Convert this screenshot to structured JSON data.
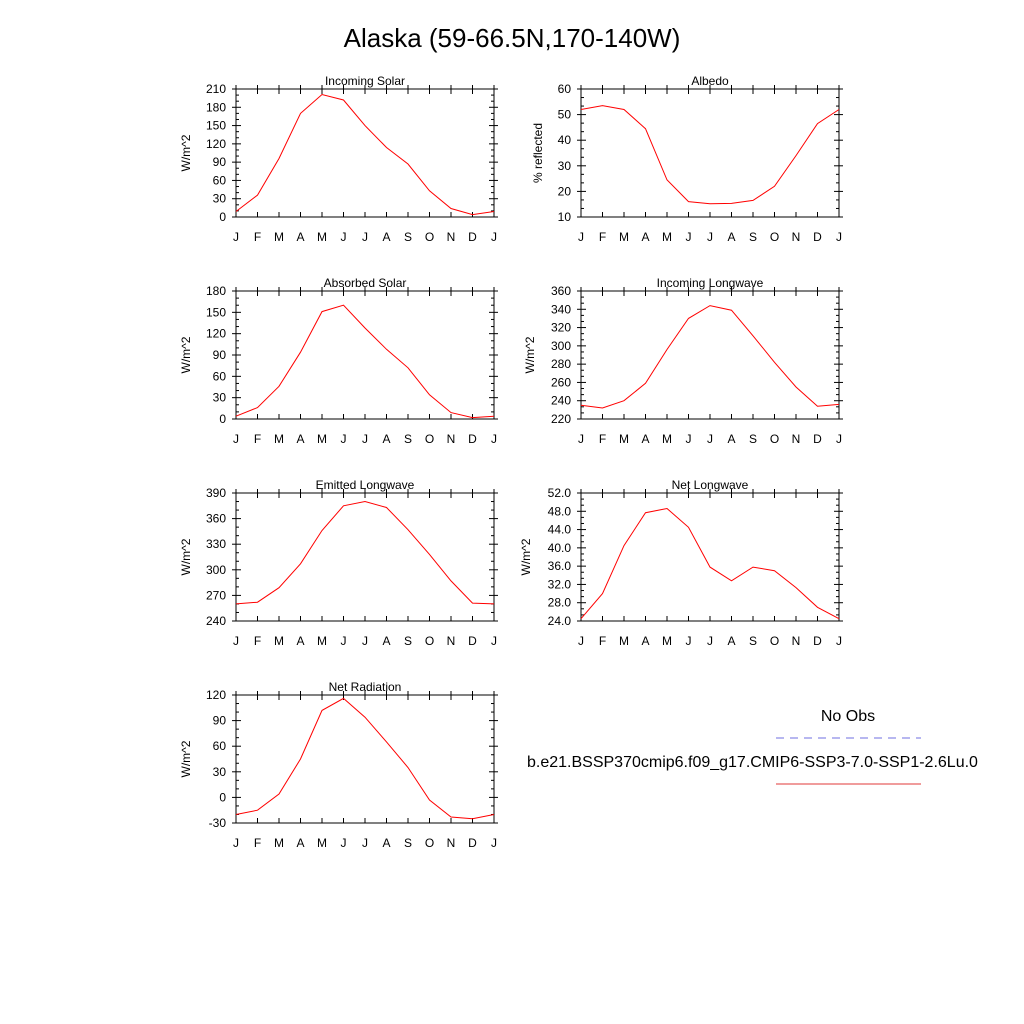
{
  "page_title": "Alaska (59-66.5N,170-140W)",
  "legend": {
    "obs_label": "No Obs",
    "obs_color": "#6f6fe0",
    "model_label": "b.e21.BSSP370cmip6.f09_g17.CMIP6-SSP3-7.0-SSP1-2.6Lu.0",
    "model_color": "#e03a3a"
  },
  "line_color": "#ff0000",
  "chart_data": [
    {
      "type": "line",
      "title": "Incoming Solar",
      "ylabel": "W/m^2",
      "categories": [
        "J",
        "F",
        "M",
        "A",
        "M",
        "J",
        "J",
        "A",
        "S",
        "O",
        "N",
        "D",
        "J"
      ],
      "values": [
        9,
        36,
        96,
        170,
        201,
        192,
        150,
        114,
        87,
        43,
        14,
        4,
        9
      ],
      "ylim": [
        0,
        210
      ],
      "yticks": [
        0,
        30,
        60,
        90,
        120,
        150,
        180,
        210
      ],
      "ytick_labels": [
        "0",
        "30",
        "60",
        "90",
        "120",
        "150",
        "180",
        "210"
      ]
    },
    {
      "type": "line",
      "title": "Albedo",
      "ylabel": "% reflected",
      "categories": [
        "J",
        "F",
        "M",
        "A",
        "M",
        "J",
        "J",
        "A",
        "S",
        "O",
        "N",
        "D",
        "J"
      ],
      "values": [
        52,
        53.5,
        52,
        44.5,
        24.5,
        16,
        15.2,
        15.3,
        16.5,
        22,
        34,
        46.5,
        52
      ],
      "ylim": [
        10,
        60
      ],
      "yticks": [
        10,
        20,
        30,
        40,
        50,
        60
      ],
      "ytick_labels": [
        "10",
        "20",
        "30",
        "40",
        "50",
        "60"
      ]
    },
    {
      "type": "line",
      "title": "Absorbed Solar",
      "ylabel": "W/m^2",
      "categories": [
        "J",
        "F",
        "M",
        "A",
        "M",
        "J",
        "J",
        "A",
        "S",
        "O",
        "N",
        "D",
        "J"
      ],
      "values": [
        4,
        16,
        46,
        94,
        151,
        160,
        128,
        98,
        72,
        34,
        9,
        2,
        4
      ],
      "ylim": [
        0,
        180
      ],
      "yticks": [
        0,
        30,
        60,
        90,
        120,
        150,
        180
      ],
      "ytick_labels": [
        "0",
        "30",
        "60",
        "90",
        "120",
        "150",
        "180"
      ]
    },
    {
      "type": "line",
      "title": "Incoming Longwave",
      "ylabel": "W/m^2",
      "categories": [
        "J",
        "F",
        "M",
        "A",
        "M",
        "J",
        "J",
        "A",
        "S",
        "O",
        "N",
        "D",
        "J"
      ],
      "values": [
        235,
        232,
        240,
        259,
        296,
        330,
        344,
        339,
        311,
        282,
        255,
        234,
        236
      ],
      "ylim": [
        220,
        360
      ],
      "yticks": [
        220,
        240,
        260,
        280,
        300,
        320,
        340,
        360
      ],
      "ytick_labels": [
        "220",
        "240",
        "260",
        "280",
        "300",
        "320",
        "340",
        "360"
      ]
    },
    {
      "type": "line",
      "title": "Emitted Longwave",
      "ylabel": "W/m^2",
      "categories": [
        "J",
        "F",
        "M",
        "A",
        "M",
        "J",
        "J",
        "A",
        "S",
        "O",
        "N",
        "D",
        "J"
      ],
      "values": [
        260,
        262,
        279,
        307,
        346,
        375,
        380,
        373,
        347,
        318,
        287,
        261,
        260
      ],
      "ylim": [
        240,
        390
      ],
      "yticks": [
        240,
        270,
        300,
        330,
        360,
        390
      ],
      "ytick_labels": [
        "240",
        "270",
        "300",
        "330",
        "360",
        "390"
      ]
    },
    {
      "type": "line",
      "title": "Net Longwave",
      "ylabel": "W/m^2",
      "categories": [
        "J",
        "F",
        "M",
        "A",
        "M",
        "J",
        "J",
        "A",
        "S",
        "O",
        "N",
        "D",
        "J"
      ],
      "values": [
        24.5,
        30,
        40.5,
        47.7,
        48.6,
        44.5,
        35.8,
        32.8,
        35.8,
        35,
        31.3,
        27,
        24.5
      ],
      "ylim": [
        24,
        52
      ],
      "yticks": [
        24,
        28,
        32,
        36,
        40,
        44,
        48,
        52
      ],
      "ytick_labels": [
        "24.0",
        "28.0",
        "32.0",
        "36.0",
        "40.0",
        "44.0",
        "48.0",
        "52.0"
      ]
    },
    {
      "type": "line",
      "title": "Net Radiation",
      "ylabel": "W/m^2",
      "categories": [
        "J",
        "F",
        "M",
        "A",
        "M",
        "J",
        "J",
        "A",
        "S",
        "O",
        "N",
        "D",
        "J"
      ],
      "values": [
        -20,
        -15,
        4,
        45,
        102,
        116,
        94,
        65,
        35,
        -3,
        -23,
        -25,
        -20
      ],
      "ylim": [
        -30,
        120
      ],
      "yticks": [
        -30,
        0,
        30,
        60,
        90,
        120
      ],
      "ytick_labels": [
        "-30",
        "0",
        "30",
        "60",
        "90",
        "120"
      ]
    }
  ]
}
